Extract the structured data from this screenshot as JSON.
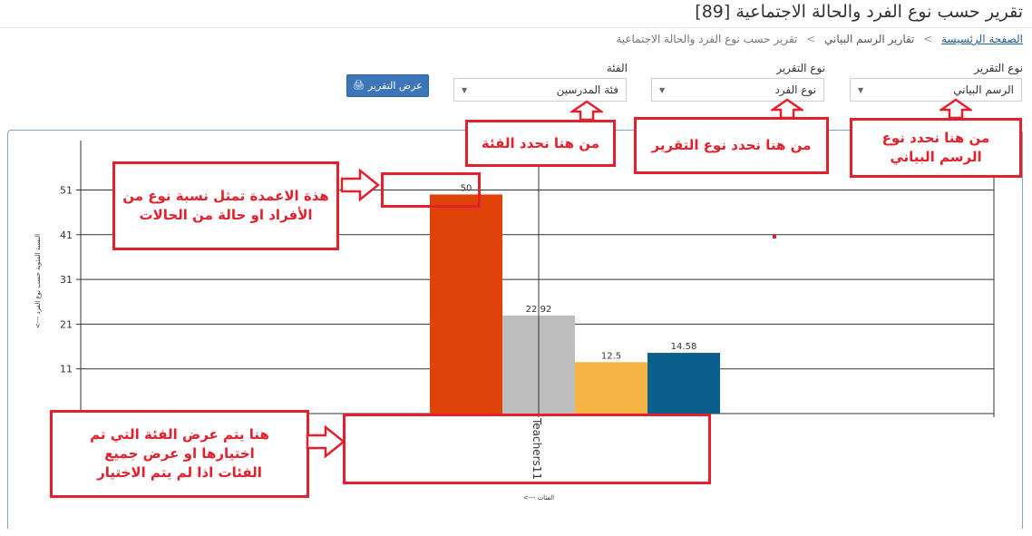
{
  "page": {
    "title": "تقرير حسب نوع الفرد والحالة الاجتماعية [89]"
  },
  "breadcrumb": {
    "home": "الصفحة الرئسيسة",
    "separator": ">",
    "chart_reports": "تقارير الرسم البياني",
    "current": "تقرير حسب نوع الفرد والحالة الاجتماعية"
  },
  "filters": {
    "report_type_1": {
      "label": "نوع التقرير",
      "value": "الرسم البياني"
    },
    "report_type_2": {
      "label": "نوع التقرير",
      "value": "نوع الفرد"
    },
    "category": {
      "label": "الفئة",
      "value": "فئة المدرسين"
    },
    "show_report_button": "عرض التقرير"
  },
  "annotations": {
    "chart_type_note": "من هنا نحدد نوع الرسم البياني",
    "report_type_note": "من هنا نحدد نوع التقرير",
    "category_note": "من هنا نحدد الفئة",
    "bars_note": "هذة الاعمدة تمثل نسبة نوع من الأفراد او حالة من الحالات",
    "category_display_note": "هنا يتم عرض الفئة التي تم اختيارها او عرض جميع الفئات اذا لم يتم الاختيار"
  },
  "colors": {
    "accent": "#3b76b8",
    "annotation": "#e4202c",
    "bar1": "#e04309",
    "bar2": "#bdbdbd",
    "bar3": "#f5b444",
    "bar4": "#0a5f8c"
  },
  "chart_data": {
    "type": "bar",
    "categories": [
      "Teachers11"
    ],
    "series": [
      {
        "values": [
          50
        ],
        "label": "50"
      },
      {
        "values": [
          22.92
        ],
        "label": "22.92"
      },
      {
        "values": [
          12.5
        ],
        "label": "12.5"
      },
      {
        "values": [
          14.58
        ],
        "label": "14.58"
      }
    ],
    "yticks": [
      11,
      21,
      31,
      41,
      51
    ],
    "ylim": [
      1,
      61
    ],
    "ylabel": "<--- النسبة المئوية حسب نوع الفرد",
    "xlabel": "<--- الفئات",
    "grid": true
  }
}
